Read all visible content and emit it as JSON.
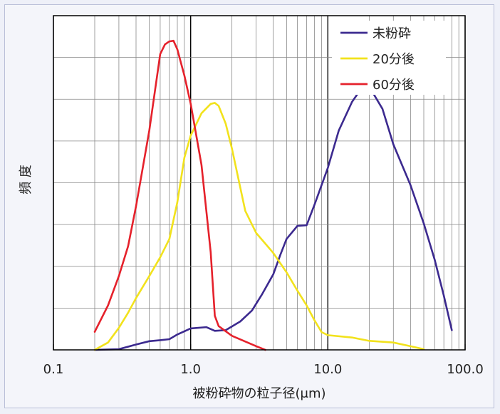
{
  "chart_data": {
    "type": "line",
    "xscale": "log",
    "xlim": [
      0.1,
      100
    ],
    "ylim": [
      0,
      100
    ],
    "xticks": [
      "0.1",
      "1.0",
      "10.0",
      "100.0"
    ],
    "xlabel": "被粉砕物の粒子径(μm)",
    "ylabel": "頻 度",
    "grid": true,
    "legend_position": "top-right",
    "series": [
      {
        "name": "未粉砕",
        "color": "#3c2a8f",
        "points": [
          [
            0.2,
            0
          ],
          [
            0.3,
            0.2
          ],
          [
            0.4,
            1.6
          ],
          [
            0.5,
            2.6
          ],
          [
            0.6,
            2.9
          ],
          [
            0.7,
            3.2
          ],
          [
            0.8,
            4.6
          ],
          [
            1.0,
            6.4
          ],
          [
            1.3,
            6.8
          ],
          [
            1.5,
            5.7
          ],
          [
            1.8,
            5.9
          ],
          [
            2.3,
            8.5
          ],
          [
            2.8,
            11.8
          ],
          [
            3.3,
            16.5
          ],
          [
            4.0,
            22.6
          ],
          [
            4.5,
            28.4
          ],
          [
            5.0,
            33.2
          ],
          [
            6.0,
            37.1
          ],
          [
            7.0,
            37.3
          ],
          [
            8.0,
            43.5
          ],
          [
            10.0,
            54.5
          ],
          [
            12.0,
            65.6
          ],
          [
            15.0,
            74.2
          ],
          [
            18.0,
            78.9
          ],
          [
            20.0,
            78.8
          ],
          [
            25.0,
            72.1
          ],
          [
            30.0,
            61.5
          ],
          [
            40.0,
            49.3
          ],
          [
            50.0,
            37.8
          ],
          [
            60.0,
            27.0
          ],
          [
            70.0,
            16.2
          ],
          [
            80.0,
            5.9
          ]
        ]
      },
      {
        "name": "20分後",
        "color": "#f2e21c",
        "points": [
          [
            0.2,
            0
          ],
          [
            0.25,
            2.2
          ],
          [
            0.3,
            6.6
          ],
          [
            0.35,
            11.1
          ],
          [
            0.4,
            15.5
          ],
          [
            0.5,
            22.1
          ],
          [
            0.6,
            27.7
          ],
          [
            0.7,
            33.2
          ],
          [
            0.8,
            44.2
          ],
          [
            0.9,
            57.5
          ],
          [
            1.0,
            64.1
          ],
          [
            1.2,
            70.8
          ],
          [
            1.4,
            73.6
          ],
          [
            1.5,
            73.9
          ],
          [
            1.6,
            73.0
          ],
          [
            1.8,
            67.7
          ],
          [
            2.0,
            60.2
          ],
          [
            2.5,
            41.6
          ],
          [
            3.0,
            35.0
          ],
          [
            4.0,
            29.0
          ],
          [
            5.0,
            23.2
          ],
          [
            6.0,
            17.7
          ],
          [
            7.0,
            13.3
          ],
          [
            8.0,
            8.8
          ],
          [
            9.0,
            5.3
          ],
          [
            10.0,
            4.4
          ],
          [
            15.0,
            3.7
          ],
          [
            20.0,
            2.7
          ],
          [
            30.0,
            2.2
          ],
          [
            40.0,
            1.1
          ],
          [
            50.0,
            0.2
          ]
        ]
      },
      {
        "name": "60分後",
        "color": "#e5212b",
        "points": [
          [
            0.2,
            5.4
          ],
          [
            0.25,
            13.3
          ],
          [
            0.3,
            22.1
          ],
          [
            0.35,
            31.0
          ],
          [
            0.4,
            43.0
          ],
          [
            0.5,
            65.7
          ],
          [
            0.6,
            88.5
          ],
          [
            0.65,
            91.4
          ],
          [
            0.7,
            92.3
          ],
          [
            0.75,
            92.5
          ],
          [
            0.8,
            89.9
          ],
          [
            0.9,
            82.1
          ],
          [
            1.0,
            73.7
          ],
          [
            1.2,
            55.3
          ],
          [
            1.4,
            29.2
          ],
          [
            1.5,
            10.2
          ],
          [
            1.6,
            7.1
          ],
          [
            2.0,
            4.2
          ],
          [
            3.0,
            1.1
          ],
          [
            3.5,
            0
          ]
        ]
      }
    ]
  }
}
